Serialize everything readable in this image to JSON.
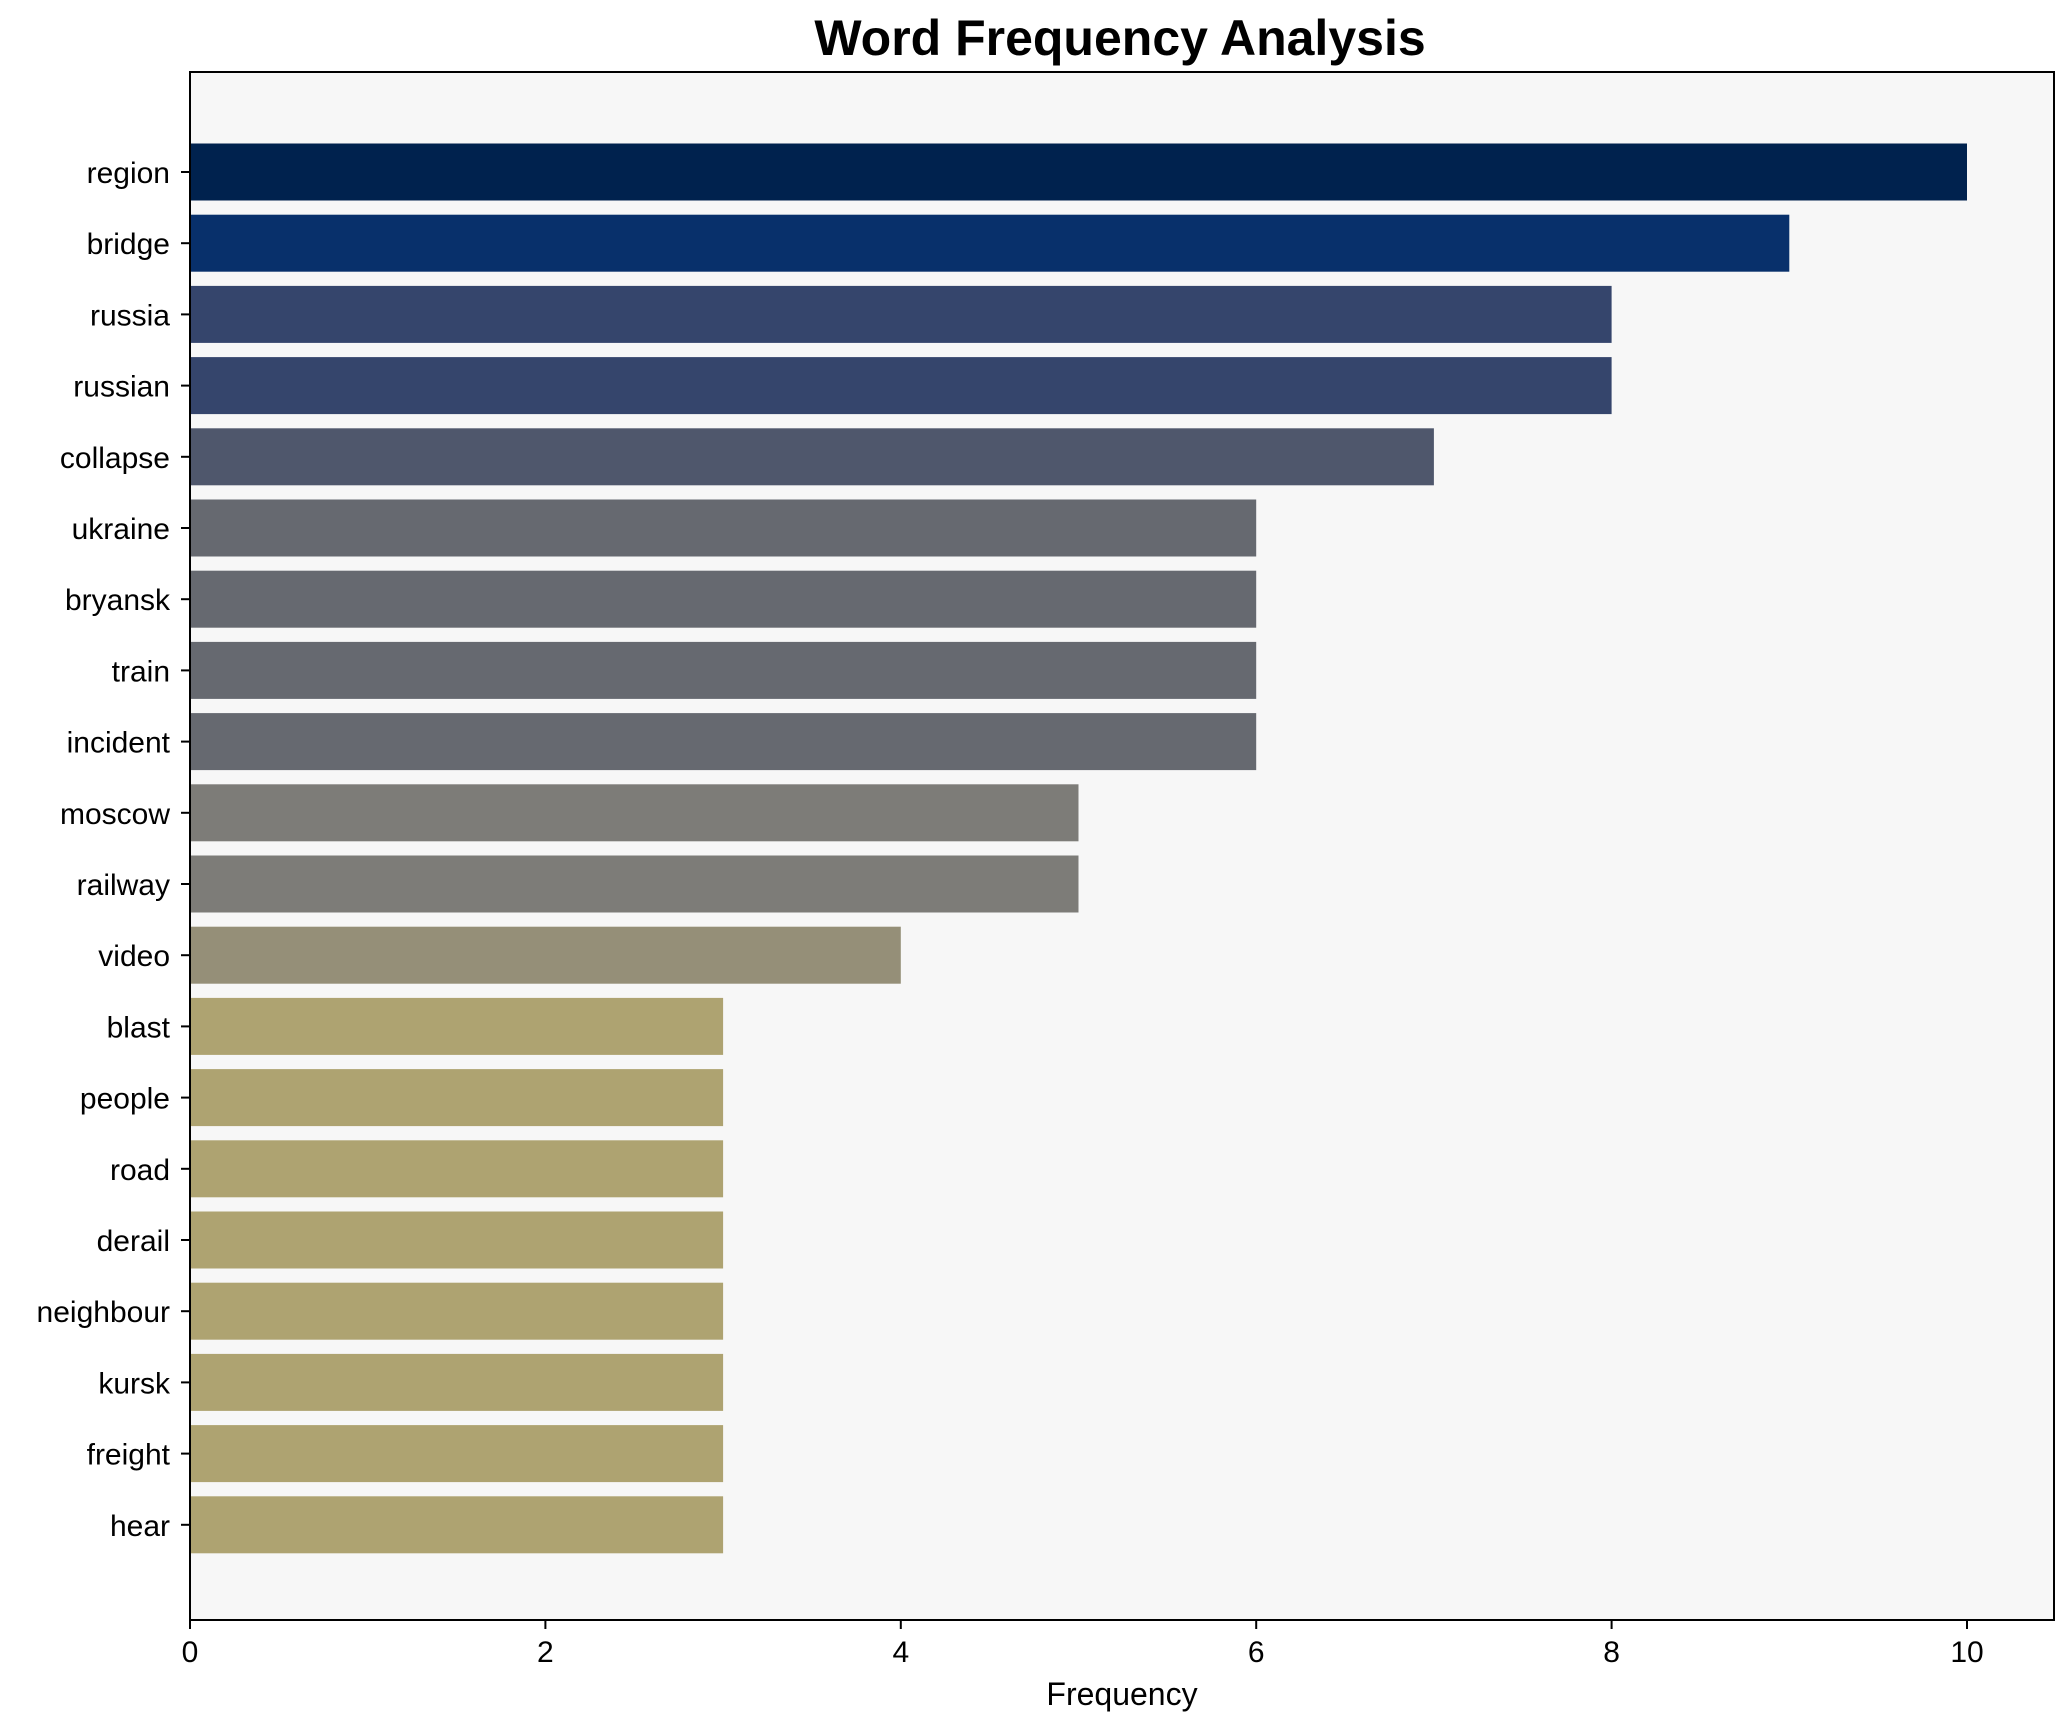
{
  "chart_data": {
    "type": "bar",
    "orientation": "horizontal",
    "title": "Word Frequency Analysis",
    "xlabel": "Frequency",
    "ylabel": "",
    "xlim": [
      0,
      10.5
    ],
    "x_ticks": [
      0,
      2,
      4,
      6,
      8,
      10
    ],
    "grid": false,
    "legend": "none",
    "plot_background": "#f7f7f7",
    "categories": [
      "region",
      "bridge",
      "russia",
      "russian",
      "collapse",
      "ukraine",
      "bryansk",
      "train",
      "incident",
      "moscow",
      "railway",
      "video",
      "blast",
      "people",
      "road",
      "derail",
      "neighbour",
      "kursk",
      "freight",
      "hear"
    ],
    "values": [
      10,
      9,
      8,
      8,
      7,
      6,
      6,
      6,
      6,
      5,
      5,
      4,
      3,
      3,
      3,
      3,
      3,
      3,
      3,
      3
    ],
    "colors": [
      "#00224e",
      "#08306b",
      "#35456c",
      "#35456c",
      "#4f576c",
      "#666970",
      "#666970",
      "#666970",
      "#666970",
      "#7d7c78",
      "#7d7c78",
      "#958f78",
      "#aea371",
      "#aea371",
      "#aea371",
      "#aea371",
      "#aea371",
      "#aea371",
      "#aea371",
      "#aea371"
    ]
  }
}
